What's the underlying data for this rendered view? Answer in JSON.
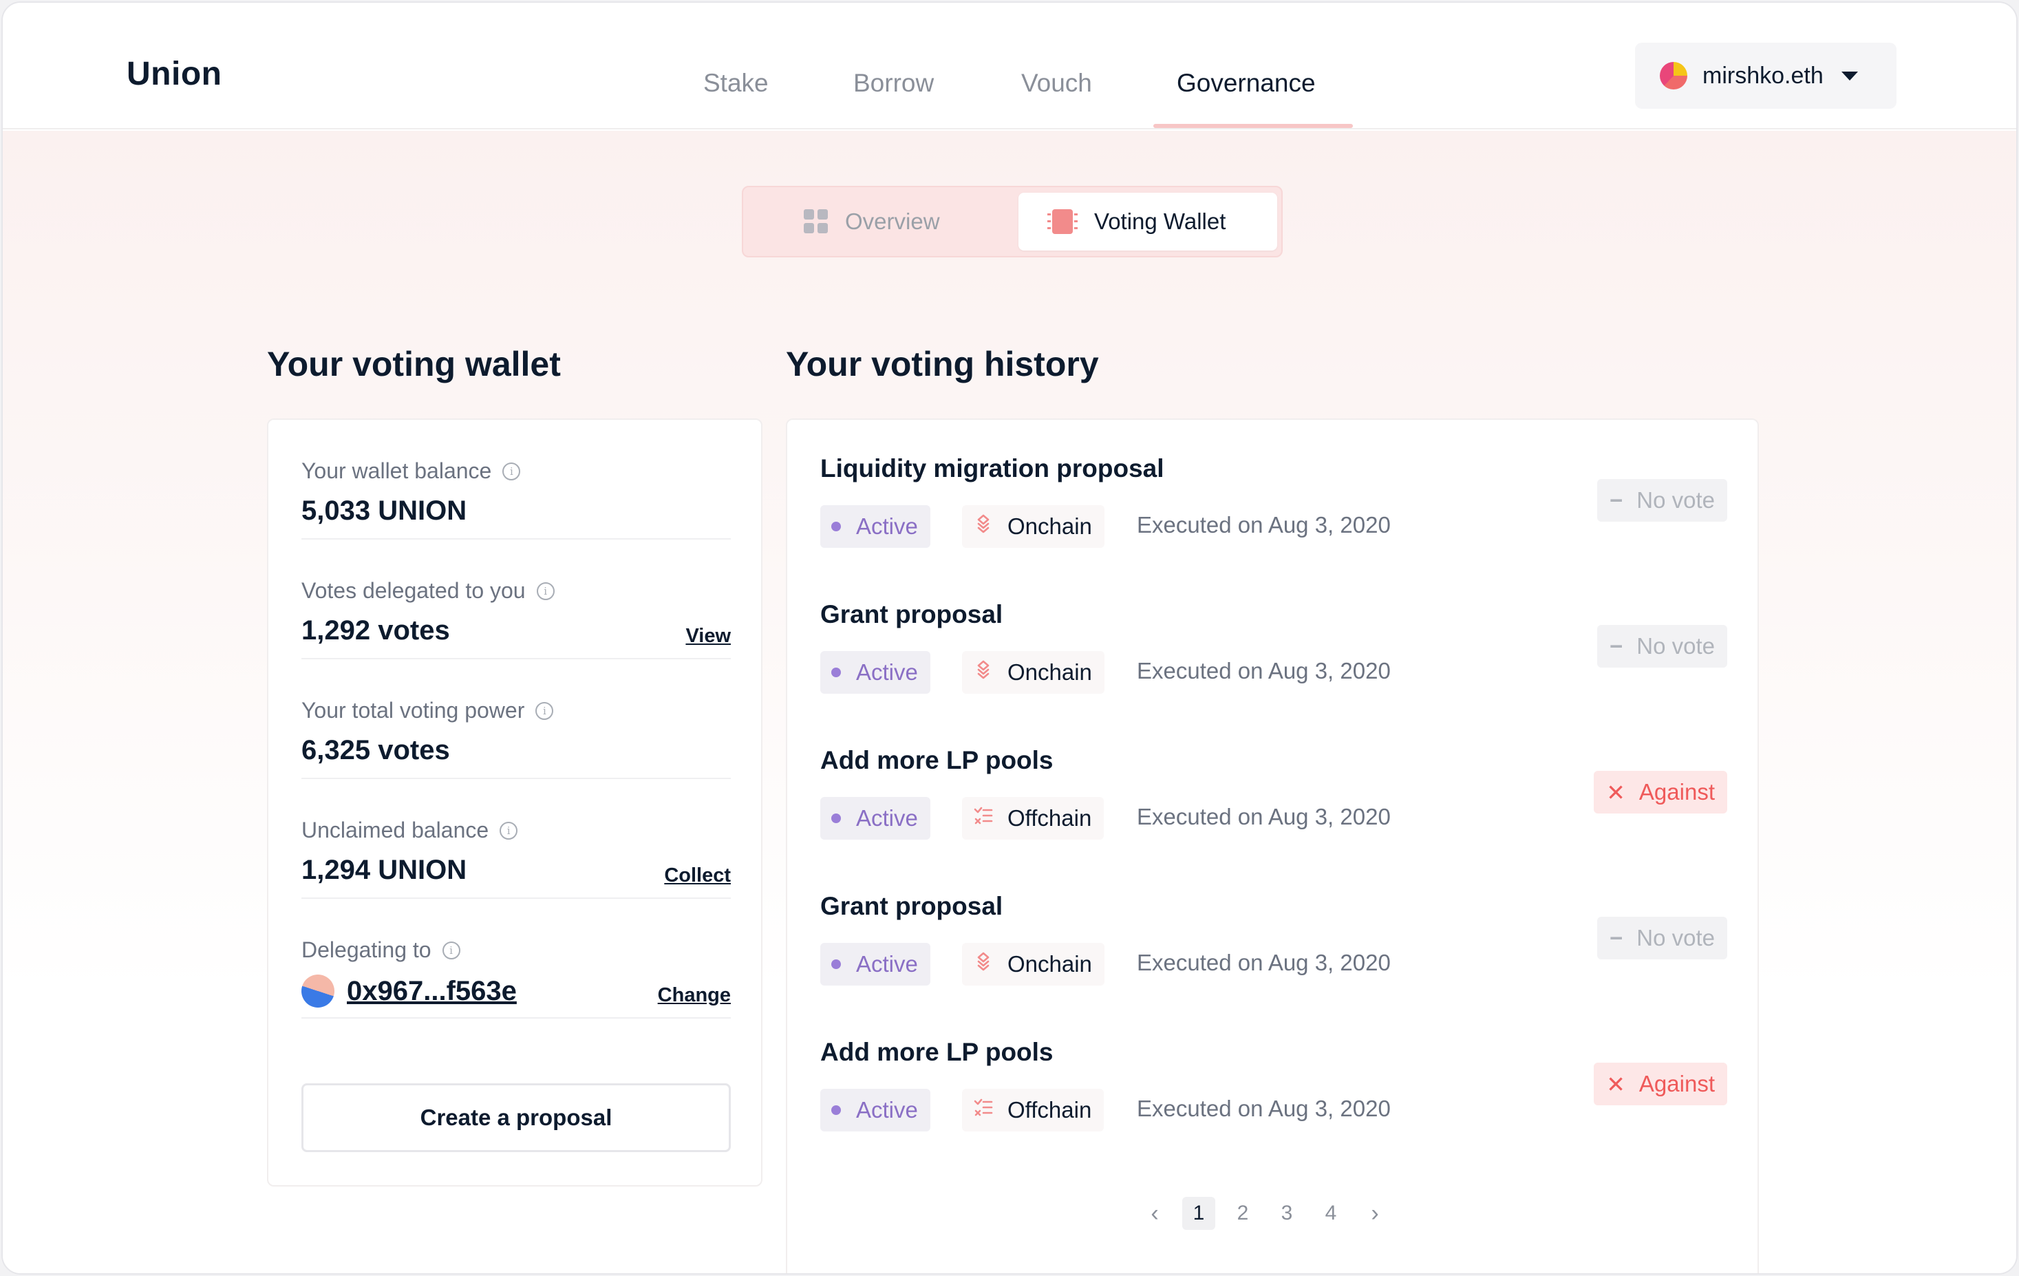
{
  "header": {
    "logo": "Union",
    "nav": [
      {
        "label": "Stake",
        "active": false
      },
      {
        "label": "Borrow",
        "active": false
      },
      {
        "label": "Vouch",
        "active": false
      },
      {
        "label": "Governance",
        "active": true
      }
    ],
    "account": {
      "name": "mirshko.eth",
      "icon": "chevron-down-icon"
    }
  },
  "view_toggle": {
    "options": [
      {
        "label": "Overview",
        "icon": "grid-icon",
        "selected": false
      },
      {
        "label": "Voting Wallet",
        "icon": "chip-icon",
        "selected": true
      }
    ]
  },
  "wallet": {
    "title": "Your voting wallet",
    "rows": [
      {
        "label": "Your wallet balance",
        "value": "5,033 UNION",
        "action": ""
      },
      {
        "label": "Votes delegated to you",
        "value": "1,292 votes",
        "action": "View"
      },
      {
        "label": "Your total voting power",
        "value": "6,325 votes",
        "action": ""
      },
      {
        "label": "Unclaimed balance",
        "value": "1,294 UNION",
        "action": "Collect"
      },
      {
        "label": "Delegating to",
        "value": "0x967...f563e",
        "action": "Change"
      }
    ],
    "info_glyph": "i",
    "create_button": "Create a proposal"
  },
  "history": {
    "title": "Your voting history",
    "proposals": [
      {
        "title": "Liquidity migration proposal",
        "status": "Active",
        "chain": "Onchain",
        "executed": "Executed on Aug 3, 2020",
        "vote": "No vote",
        "vote_symbol": "−"
      },
      {
        "title": "Grant proposal",
        "status": "Active",
        "chain": "Onchain",
        "executed": "Executed on Aug 3, 2020",
        "vote": "No vote",
        "vote_symbol": "−"
      },
      {
        "title": "Add more LP pools",
        "status": "Active",
        "chain": "Offchain",
        "executed": "Executed on Aug 3, 2020",
        "vote": "Against",
        "vote_symbol": "✕"
      },
      {
        "title": "Grant proposal",
        "status": "Active",
        "chain": "Onchain",
        "executed": "Executed on Aug 3, 2020",
        "vote": "No vote",
        "vote_symbol": "−"
      },
      {
        "title": "Add more LP pools",
        "status": "Active",
        "chain": "Offchain",
        "executed": "Executed on Aug 3, 2020",
        "vote": "Against",
        "vote_symbol": "✕"
      }
    ],
    "pagination": {
      "prev": "‹",
      "pages": [
        "1",
        "2",
        "3",
        "4"
      ],
      "current": "1",
      "next": "›"
    }
  },
  "colors": {
    "primary_text": "#0d1b2e",
    "accent_pink": "#f28b8b",
    "status_purple": "#8a6fc5",
    "against_red": "#ef5a5a"
  }
}
